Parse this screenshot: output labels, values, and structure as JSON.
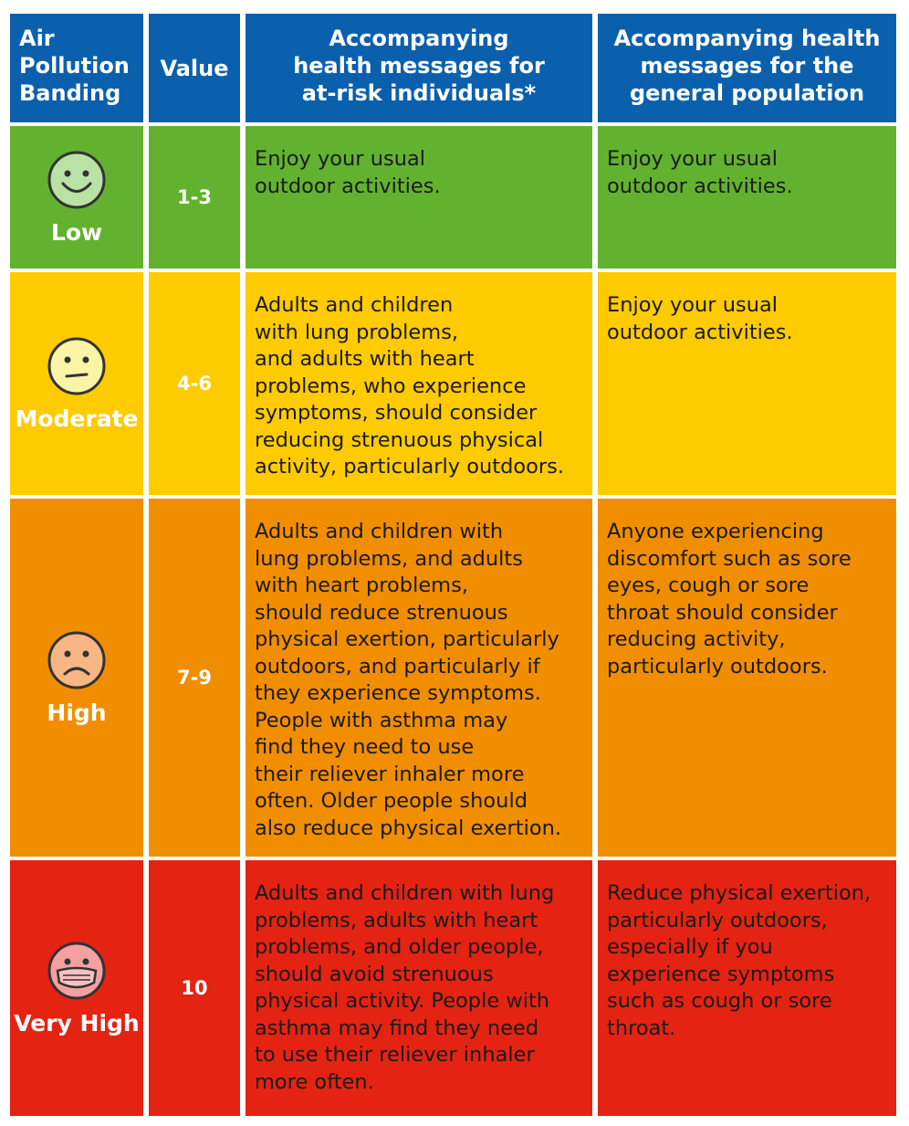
{
  "header": {
    "col1": "Air\nPollution\nBanding",
    "col2": "Value",
    "col3": "Accompanying\nhealth messages for\nat-risk individuals*",
    "col4": "Accompanying health\nmessages for the\ngeneral population"
  },
  "rows": [
    {
      "band": "Low",
      "value": "1-3",
      "face": "smile-face-icon",
      "color": "#62b22f",
      "at_risk": "Enjoy your usual\noutdoor activities.",
      "general": "Enjoy your usual\noutdoor activities."
    },
    {
      "band": "Moderate",
      "value": "4-6",
      "face": "neutral-face-icon",
      "color": "#fecb00",
      "at_risk": "Adults and children\nwith lung problems,\nand adults with heart\nproblems, who experience\nsymptoms, should consider\nreducing strenuous physical\nactivity, particularly outdoors.",
      "general": "Enjoy your usual\noutdoor activities."
    },
    {
      "band": "High",
      "value": "7-9",
      "face": "frown-face-icon",
      "color": "#f18e00",
      "at_risk": "Adults and children with\nlung problems, and adults\nwith heart problems,\nshould reduce strenuous\nphysical exertion, particularly\noutdoors, and particularly if\nthey experience symptoms.\nPeople with asthma may\nfind they need to use\ntheir reliever inhaler more\noften. Older people should\nalso reduce physical exertion.",
      "general": "Anyone experiencing\ndiscomfort such as sore\neyes, cough or sore\nthroat should consider\nreducing activity,\nparticularly outdoors."
    },
    {
      "band": "Very High",
      "value": "10",
      "face": "mask-face-icon",
      "color": "#e42313",
      "at_risk": "Adults and children with lung\nproblems, adults with heart\nproblems, and older people,\nshould avoid strenuous\nphysical activity. People with\nasthma may find they need\nto use their reliever inhaler\nmore often.",
      "general": "Reduce physical exertion,\nparticularly outdoors,\nespecially if you\nexperience symptoms\nsuch as cough or sore\nthroat."
    }
  ]
}
